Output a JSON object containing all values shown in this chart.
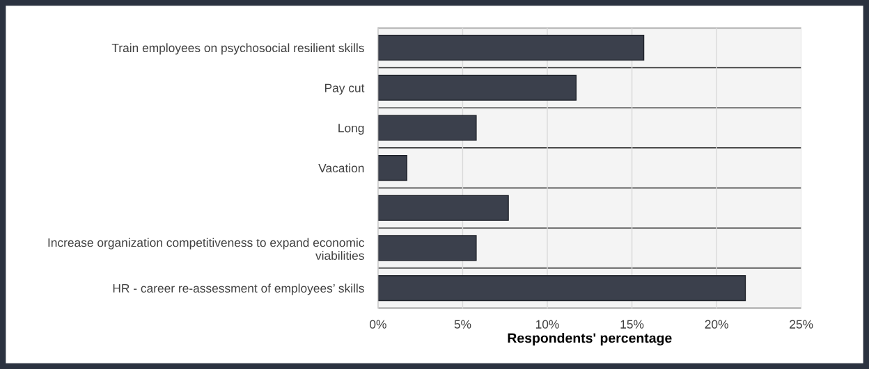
{
  "chart_data": {
    "type": "bar",
    "orientation": "horizontal",
    "xlabel": "Respondents' percentage",
    "categories": [
      "Train employees on psychosocial resilient skills",
      "Pay cut",
      "Long",
      "Vacation",
      null,
      "Increase organization competitiveness to expand economic viabilities",
      "HR - career re-assessment of employees’ skills"
    ],
    "values": [
      15.7,
      11.7,
      5.8,
      1.7,
      7.7,
      5.8,
      21.7
    ],
    "color": "#3b404c",
    "xlim": [
      0,
      25
    ],
    "xticks": [
      {
        "value": 0,
        "label": "0%"
      },
      {
        "value": 5,
        "label": "5%"
      },
      {
        "value": 10,
        "label": "10%"
      },
      {
        "value": 15,
        "label": "15%"
      },
      {
        "value": 20,
        "label": "20%"
      },
      {
        "value": 25,
        "label": "25%"
      }
    ],
    "grid": true
  }
}
